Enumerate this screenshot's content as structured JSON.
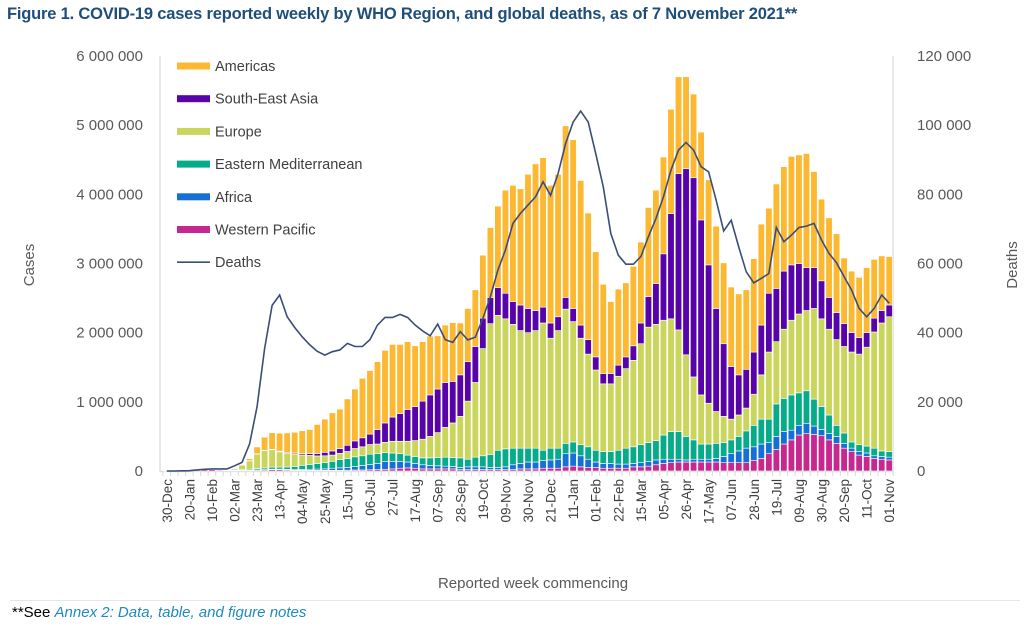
{
  "title": "Figure 1. COVID-19 cases reported weekly by WHO Region, and global deaths, as of 7 November 2021**",
  "footnote": {
    "prefix": "**See ",
    "link": "Annex 2: Data, table, and figure notes"
  },
  "chart_data": {
    "type": "bar",
    "stacked": true,
    "xlabel": "Reported week commencing",
    "ylabel": "Cases",
    "y2label": "Deaths",
    "ylim": [
      0,
      6000000
    ],
    "y2lim": [
      0,
      120000
    ],
    "yticks": [
      "0",
      "1 000 000",
      "2 000 000",
      "3 000 000",
      "4 000 000",
      "5 000 000",
      "6 000 000"
    ],
    "y2ticks": [
      "0",
      "20 000",
      "40 000",
      "60 000",
      "80 000",
      "100 000",
      "120 000"
    ],
    "grid": false,
    "legend_position": "top-left",
    "x_tick_labels": [
      "30-Dec",
      "20-Jan",
      "10-Feb",
      "02-Mar",
      "23-Mar",
      "13-Apr",
      "04-May",
      "25-May",
      "15-Jun",
      "06-Jul",
      "27-Jul",
      "17-Aug",
      "07-Sep",
      "28-Sep",
      "19-Oct",
      "09-Nov",
      "30-Nov",
      "21-Dec",
      "11-Jan",
      "01-Feb",
      "22-Feb",
      "15-Mar",
      "05-Apr",
      "26-Apr",
      "17-May",
      "07-Jun",
      "28-Jun",
      "19-Jul",
      "09-Aug",
      "30-Aug",
      "20-Sep",
      "11-Oct",
      "01-Nov"
    ],
    "series": [
      {
        "name": "Americas",
        "color": "#FDB831",
        "values": [
          0,
          0,
          0,
          0,
          0,
          0,
          0,
          0,
          0,
          2000,
          10000,
          30000,
          100000,
          190000,
          240000,
          260000,
          280000,
          300000,
          330000,
          350000,
          420000,
          480000,
          550000,
          570000,
          670000,
          750000,
          860000,
          920000,
          980000,
          1050000,
          1050000,
          1000000,
          980000,
          880000,
          860000,
          850000,
          770000,
          830000,
          850000,
          750000,
          770000,
          820000,
          910000,
          1010000,
          1180000,
          1490000,
          1680000,
          1680000,
          1940000,
          2120000,
          2160000,
          1990000,
          2060000,
          2480000,
          2440000,
          2090000,
          1830000,
          1520000,
          1290000,
          1040000,
          1100000,
          1070000,
          1150000,
          1170000,
          1290000,
          1350000,
          1400000,
          1510000,
          1400000,
          1330000,
          1210000,
          1270000,
          1230000,
          1190000,
          1170000,
          1150000,
          1170000,
          1150000,
          1350000,
          1460000,
          1230000,
          1510000,
          1510000,
          1570000,
          1570000,
          1650000,
          1390000,
          1180000,
          1150000,
          1140000,
          950000,
          890000,
          870000,
          940000,
          850000,
          790000,
          700000
        ]
      },
      {
        "name": "South-East Asia",
        "color": "#5803AA",
        "values": [
          0,
          0,
          0,
          0,
          0,
          0,
          0,
          0,
          0,
          0,
          1000,
          2000,
          3000,
          5000,
          7000,
          10000,
          12000,
          15000,
          20000,
          25000,
          35000,
          50000,
          60000,
          70000,
          90000,
          110000,
          130000,
          150000,
          210000,
          280000,
          350000,
          400000,
          460000,
          490000,
          550000,
          600000,
          630000,
          650000,
          600000,
          600000,
          570000,
          520000,
          440000,
          380000,
          400000,
          370000,
          330000,
          370000,
          350000,
          290000,
          230000,
          220000,
          200000,
          170000,
          190000,
          190000,
          210000,
          190000,
          150000,
          150000,
          160000,
          170000,
          210000,
          300000,
          440000,
          590000,
          960000,
          1520000,
          2260000,
          2690000,
          2880000,
          2530000,
          2000000,
          1490000,
          1050000,
          760000,
          580000,
          560000,
          610000,
          720000,
          850000,
          770000,
          840000,
          800000,
          730000,
          620000,
          590000,
          550000,
          460000,
          390000,
          330000,
          280000,
          240000,
          210000,
          200000,
          180000,
          170000
        ]
      },
      {
        "name": "Europe",
        "color": "#C9D55B",
        "values": [
          0,
          0,
          0,
          0,
          0,
          0,
          0,
          0,
          2000,
          20000,
          70000,
          120000,
          210000,
          250000,
          250000,
          220000,
          200000,
          180000,
          150000,
          130000,
          110000,
          100000,
          90000,
          90000,
          100000,
          120000,
          130000,
          140000,
          140000,
          150000,
          170000,
          180000,
          200000,
          230000,
          270000,
          310000,
          360000,
          430000,
          500000,
          600000,
          840000,
          1080000,
          1550000,
          1890000,
          1950000,
          1880000,
          1790000,
          1700000,
          1670000,
          1700000,
          1840000,
          1590000,
          1700000,
          1940000,
          1740000,
          1540000,
          1340000,
          1160000,
          980000,
          980000,
          1070000,
          1150000,
          1250000,
          1460000,
          1670000,
          1680000,
          1660000,
          1630000,
          1470000,
          1180000,
          910000,
          710000,
          590000,
          460000,
          380000,
          300000,
          310000,
          330000,
          450000,
          640000,
          970000,
          900000,
          1000000,
          1080000,
          1140000,
          1160000,
          1310000,
          1270000,
          1240000,
          1240000,
          1250000,
          1300000,
          1310000,
          1430000,
          1680000,
          1850000,
          1950000
        ]
      },
      {
        "name": "Eastern Mediterranean",
        "color": "#06AC8A",
        "values": [
          0,
          0,
          0,
          0,
          0,
          0,
          0,
          0,
          4000,
          6000,
          10000,
          15000,
          20000,
          25000,
          30000,
          30000,
          35000,
          45000,
          60000,
          70000,
          80000,
          90000,
          100000,
          120000,
          130000,
          140000,
          140000,
          150000,
          140000,
          130000,
          120000,
          110000,
          100000,
          100000,
          100000,
          110000,
          120000,
          130000,
          130000,
          140000,
          110000,
          140000,
          160000,
          190000,
          250000,
          260000,
          240000,
          220000,
          200000,
          200000,
          150000,
          170000,
          160000,
          150000,
          160000,
          160000,
          180000,
          170000,
          170000,
          170000,
          200000,
          230000,
          240000,
          260000,
          270000,
          280000,
          350000,
          400000,
          400000,
          340000,
          280000,
          220000,
          220000,
          220000,
          200000,
          200000,
          210000,
          250000,
          310000,
          360000,
          340000,
          470000,
          480000,
          510000,
          470000,
          470000,
          390000,
          330000,
          270000,
          160000,
          150000,
          90000,
          100000,
          100000,
          110000,
          80000,
          80000
        ]
      },
      {
        "name": "Africa",
        "color": "#1470D6",
        "values": [
          0,
          0,
          0,
          0,
          0,
          0,
          0,
          0,
          0,
          0,
          1000,
          2000,
          3000,
          5000,
          6000,
          7000,
          8000,
          10000,
          12000,
          15000,
          18000,
          20000,
          30000,
          35000,
          40000,
          50000,
          65000,
          75000,
          90000,
          110000,
          110000,
          100000,
          85000,
          70000,
          60000,
          50000,
          45000,
          40000,
          35000,
          30000,
          40000,
          40000,
          40000,
          30000,
          30000,
          40000,
          70000,
          80000,
          100000,
          100000,
          110000,
          120000,
          130000,
          190000,
          190000,
          160000,
          120000,
          80000,
          70000,
          70000,
          60000,
          60000,
          50000,
          60000,
          70000,
          70000,
          60000,
          50000,
          40000,
          30000,
          40000,
          40000,
          40000,
          50000,
          90000,
          130000,
          170000,
          210000,
          200000,
          210000,
          160000,
          190000,
          180000,
          140000,
          140000,
          150000,
          120000,
          90000,
          90000,
          100000,
          70000,
          50000,
          50000,
          50000,
          40000,
          40000,
          40000
        ]
      },
      {
        "name": "Western Pacific",
        "color": "#C7288F",
        "values": [
          1000,
          2000,
          3000,
          15000,
          20000,
          25000,
          20000,
          12000,
          8000,
          6000,
          7000,
          10000,
          12000,
          15000,
          20000,
          20000,
          15000,
          10000,
          10000,
          10000,
          10000,
          10000,
          10000,
          10000,
          12000,
          15000,
          15000,
          18000,
          20000,
          25000,
          30000,
          40000,
          45000,
          40000,
          30000,
          30000,
          30000,
          30000,
          30000,
          20000,
          20000,
          20000,
          20000,
          20000,
          20000,
          20000,
          20000,
          30000,
          30000,
          30000,
          40000,
          40000,
          40000,
          60000,
          70000,
          60000,
          50000,
          50000,
          40000,
          40000,
          40000,
          40000,
          60000,
          60000,
          70000,
          90000,
          110000,
          120000,
          130000,
          130000,
          130000,
          130000,
          130000,
          130000,
          120000,
          120000,
          120000,
          120000,
          150000,
          180000,
          250000,
          310000,
          390000,
          450000,
          520000,
          540000,
          530000,
          510000,
          450000,
          400000,
          330000,
          280000,
          230000,
          210000,
          180000,
          170000,
          160000
        ]
      }
    ],
    "line_series": {
      "name": "Deaths",
      "color": "#3B4E78",
      "axis": "right",
      "values": [
        0,
        0,
        50,
        100,
        300,
        500,
        600,
        600,
        600,
        1500,
        2500,
        7800,
        18600,
        35400,
        47900,
        50900,
        44600,
        41500,
        38800,
        36500,
        34600,
        33500,
        34500,
        35000,
        36900,
        36000,
        36000,
        38000,
        42200,
        44400,
        44400,
        45300,
        44400,
        42200,
        40500,
        39100,
        42500,
        38000,
        37200,
        40300,
        37900,
        38700,
        44100,
        50400,
        58100,
        63900,
        71600,
        74500,
        76900,
        79300,
        83600,
        79700,
        86000,
        94700,
        100900,
        104100,
        100900,
        91800,
        82200,
        68700,
        62400,
        59800,
        59800,
        62000,
        67800,
        73000,
        79300,
        87000,
        92800,
        95000,
        92800,
        88000,
        86500,
        78300,
        69400,
        72500,
        64800,
        57600,
        54400,
        55700,
        57100,
        70400,
        66300,
        68200,
        70400,
        70800,
        71600,
        66800,
        62900,
        60200,
        56200,
        52300,
        47000,
        44600,
        47000,
        50900,
        48500
      ]
    }
  }
}
